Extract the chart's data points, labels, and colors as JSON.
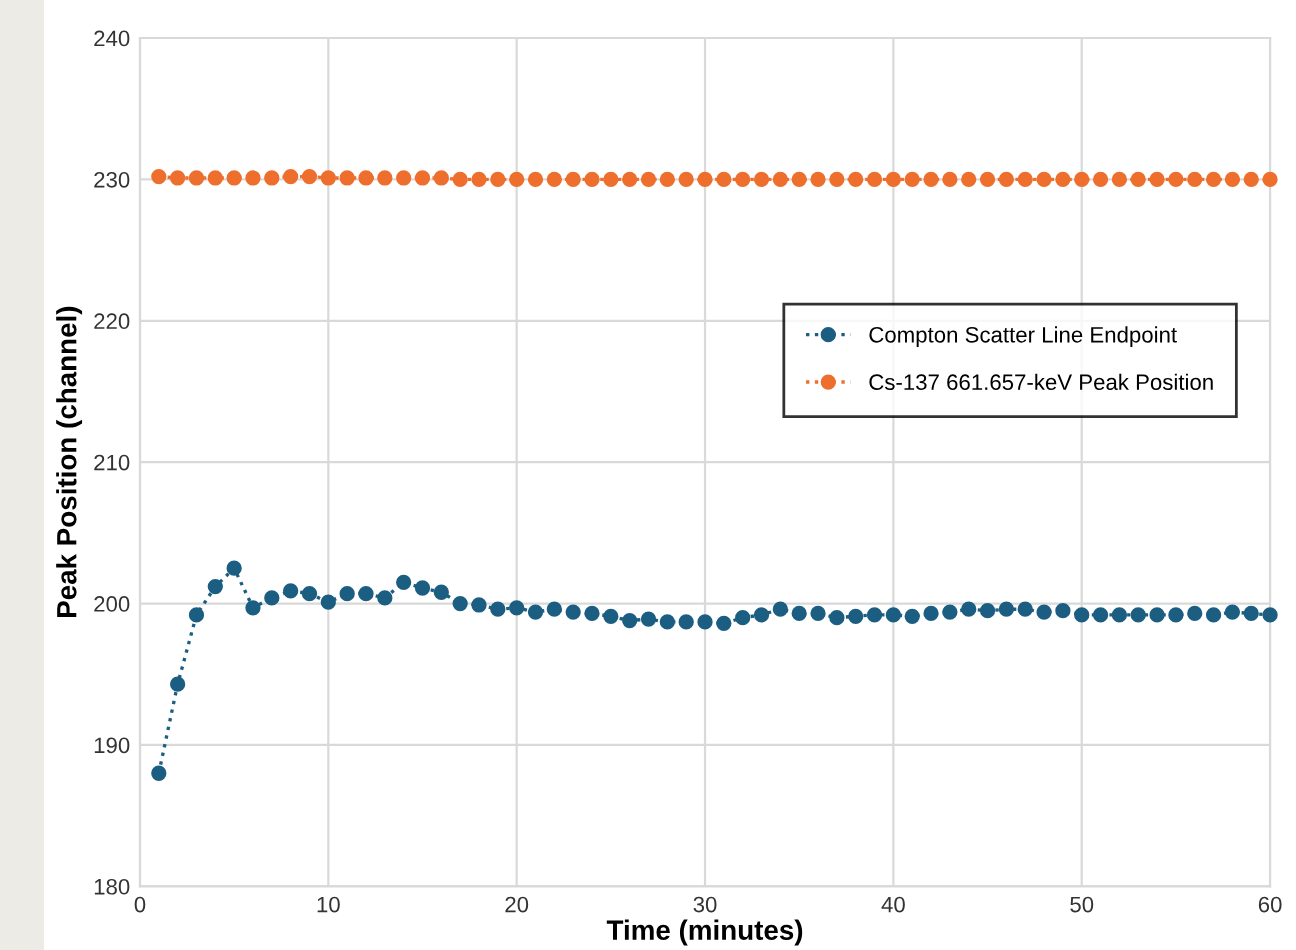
{
  "chart_data": {
    "type": "line",
    "xlabel": "Time (minutes)",
    "ylabel": "Peak Position (channel)",
    "x": [
      1,
      2,
      3,
      4,
      5,
      6,
      7,
      8,
      9,
      10,
      11,
      12,
      13,
      14,
      15,
      16,
      17,
      18,
      19,
      20,
      21,
      22,
      23,
      24,
      25,
      26,
      27,
      28,
      29,
      30,
      31,
      32,
      33,
      34,
      35,
      36,
      37,
      38,
      39,
      40,
      41,
      42,
      43,
      44,
      45,
      46,
      47,
      48,
      49,
      50,
      51,
      52,
      53,
      54,
      55,
      56,
      57,
      58,
      59,
      60
    ],
    "series": [
      {
        "name": "Compton Scatter Line Endpoint",
        "color": "#1c5e82",
        "values": [
          188.0,
          194.3,
          199.2,
          201.2,
          202.5,
          199.7,
          200.4,
          200.9,
          200.7,
          200.1,
          200.7,
          200.7,
          200.4,
          201.5,
          201.1,
          200.8,
          200.0,
          199.9,
          199.6,
          199.7,
          199.4,
          199.6,
          199.4,
          199.3,
          199.1,
          198.8,
          198.9,
          198.7,
          198.7,
          198.7,
          198.6,
          199.0,
          199.2,
          199.6,
          199.3,
          199.3,
          199.0,
          199.1,
          199.2,
          199.2,
          199.1,
          199.3,
          199.4,
          199.6,
          199.5,
          199.6,
          199.6,
          199.4,
          199.5,
          199.2,
          199.2,
          199.2,
          199.2,
          199.2,
          199.2,
          199.3,
          199.2,
          199.4,
          199.3,
          199.2
        ]
      },
      {
        "name": "Cs-137 661.657-keV Peak Position",
        "color": "#ee6f2d",
        "values": [
          230.2,
          230.1,
          230.1,
          230.1,
          230.1,
          230.1,
          230.1,
          230.2,
          230.2,
          230.1,
          230.1,
          230.1,
          230.1,
          230.1,
          230.1,
          230.1,
          230.0,
          230.0,
          230.0,
          230.0,
          230.0,
          230.0,
          230.0,
          230.0,
          230.0,
          230.0,
          230.0,
          230.0,
          230.0,
          230.0,
          230.0,
          230.0,
          230.0,
          230.0,
          230.0,
          230.0,
          230.0,
          230.0,
          230.0,
          230.0,
          230.0,
          230.0,
          230.0,
          230.0,
          230.0,
          230.0,
          230.0,
          230.0,
          230.0,
          230.0,
          230.0,
          230.0,
          230.0,
          230.0,
          230.0,
          230.0,
          230.0,
          230.0,
          230.0,
          230.0
        ]
      }
    ],
    "xlim": [
      0,
      60
    ],
    "xticks": [
      0,
      10,
      20,
      30,
      40,
      50,
      60
    ],
    "ylim": [
      180,
      240
    ],
    "yticks": [
      180,
      190,
      200,
      210,
      220,
      230,
      240
    ],
    "grid": true,
    "legend": "right",
    "marker": "circle",
    "line_style": "dotted"
  }
}
